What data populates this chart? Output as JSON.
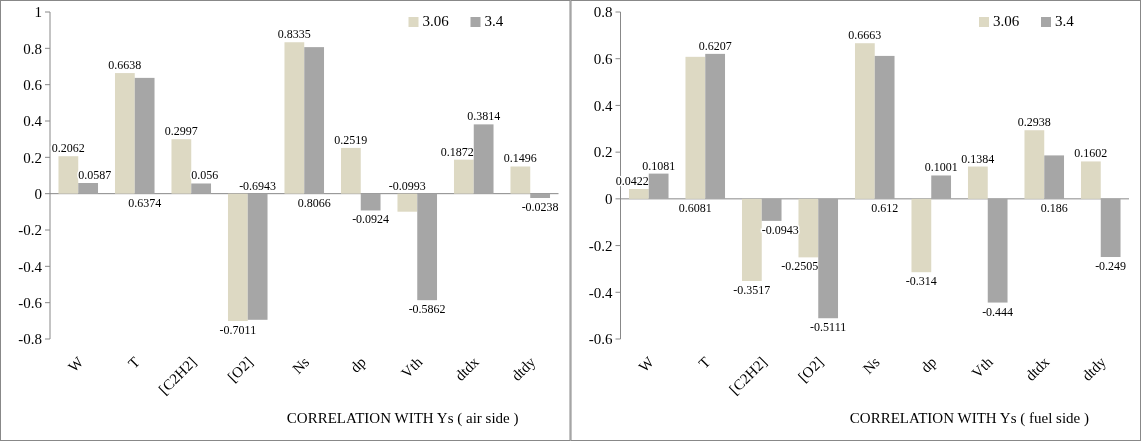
{
  "chart_data": [
    {
      "type": "bar",
      "xlabel": "CORRELATION WITH Ys ( air side )",
      "categories": [
        "W",
        "T",
        "[C2H2]",
        "[O2]",
        "Ns",
        "dp",
        "Vth",
        "dtdx",
        "dtdy"
      ],
      "series": [
        {
          "name": "3.06",
          "color": "#ddd9c3",
          "values": [
            0.2062,
            0.6638,
            0.2997,
            -0.7011,
            0.8335,
            0.2519,
            -0.0993,
            0.1872,
            0.1496
          ]
        },
        {
          "name": "3.4",
          "color": "#a6a6a6",
          "values": [
            0.0587,
            0.6374,
            0.056,
            -0.6943,
            0.8066,
            -0.0924,
            -0.5862,
            0.3814,
            -0.0238
          ]
        }
      ],
      "ylim": [
        -0.8,
        1
      ],
      "yticks": [
        -0.8,
        -0.6,
        -0.4,
        -0.2,
        0,
        0.2,
        0.4,
        0.6,
        0.8,
        1
      ],
      "legend": "top right",
      "data_labels": true
    },
    {
      "type": "bar",
      "xlabel": "CORRELATION WITH Ys ( fuel side )",
      "categories": [
        "W",
        "T",
        "[C2H2]",
        "[O2]",
        "Ns",
        "dp",
        "Vth",
        "dtdx",
        "dtdy"
      ],
      "series": [
        {
          "name": "3.06",
          "color": "#ddd9c3",
          "values": [
            0.0422,
            0.6081,
            -0.3517,
            -0.2505,
            0.6663,
            -0.314,
            0.1384,
            0.2938,
            0.1602
          ]
        },
        {
          "name": "3.4",
          "color": "#a6a6a6",
          "values": [
            0.1081,
            0.6207,
            -0.0943,
            -0.5111,
            0.612,
            0.1001,
            -0.444,
            0.186,
            -0.249
          ]
        }
      ],
      "ylim": [
        -0.6,
        0.8
      ],
      "yticks": [
        -0.6,
        -0.4,
        -0.2,
        0,
        0.2,
        0.4,
        0.6,
        0.8
      ],
      "legend": "top right",
      "data_labels": true
    }
  ]
}
